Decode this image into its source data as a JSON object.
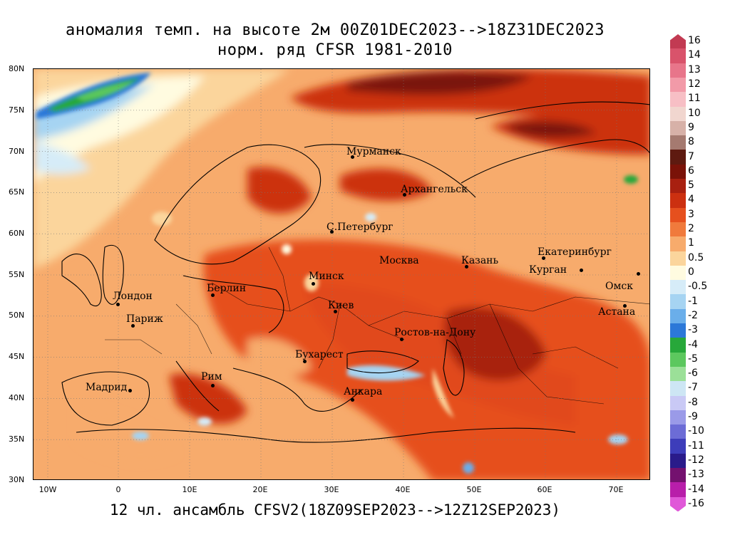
{
  "title": {
    "line1": "аномалия темп. на высоте 2м 00Z01DEC2023-->18Z31DEC2023",
    "line2": "норм. ряд CFSR 1981-2010"
  },
  "footer": "12 чл. ансамбль CFSV2(18Z09SEP2023-->12Z12SEP2023)",
  "axes": {
    "lat_labels": [
      "80N",
      "75N",
      "70N",
      "65N",
      "60N",
      "55N",
      "50N",
      "45N",
      "40N",
      "35N",
      "30N"
    ],
    "lon_labels": [
      "10W",
      "0",
      "10E",
      "20E",
      "30E",
      "40E",
      "50E",
      "60E",
      "70E"
    ]
  },
  "cities": [
    {
      "name": "Мурманск"
    },
    {
      "name": "Архангельск"
    },
    {
      "name": "С.Петербург"
    },
    {
      "name": "Москва"
    },
    {
      "name": "Казань"
    },
    {
      "name": "Екатеринбург"
    },
    {
      "name": "Курган"
    },
    {
      "name": "Омск"
    },
    {
      "name": "Астана"
    },
    {
      "name": "Минск"
    },
    {
      "name": "Берлин"
    },
    {
      "name": "Лондон"
    },
    {
      "name": "Париж"
    },
    {
      "name": "Киев"
    },
    {
      "name": "Ростов-на-Дону"
    },
    {
      "name": "Бухарест"
    },
    {
      "name": "Рим"
    },
    {
      "name": "Мадрид"
    },
    {
      "name": "Анкара"
    }
  ],
  "legend": {
    "labels": [
      "16",
      "14",
      "13",
      "12",
      "11",
      "10",
      "9",
      "8",
      "7",
      "6",
      "5",
      "4",
      "3",
      "2",
      "1",
      "0.5",
      "0",
      "-0.5",
      "-1",
      "-2",
      "-3",
      "-4",
      "-5",
      "-6",
      "-7",
      "-8",
      "-9",
      "-10",
      "-11",
      "-12",
      "-13",
      "-14",
      "-16"
    ],
    "colors": [
      "#c23a52",
      "#d9536b",
      "#e8758a",
      "#f29aa8",
      "#f7bfc5",
      "#f1d6cf",
      "#d7b1a8",
      "#a57a70",
      "#5e1a10",
      "#7a1208",
      "#a82010",
      "#cc3010",
      "#e6501e",
      "#f07a3c",
      "#f7ab6c",
      "#fbd59c",
      "#fffbe0",
      "#d6ecf8",
      "#a6d4f2",
      "#6aaeea",
      "#2c78d8",
      "#27a83a",
      "#5cc85e",
      "#9be098",
      "#cde6f4",
      "#c9c9f5",
      "#9a9ae8",
      "#6c6cd6",
      "#3d3dba",
      "#2a1b8a",
      "#74116f",
      "#b81eaa",
      "#e058d8"
    ]
  }
}
